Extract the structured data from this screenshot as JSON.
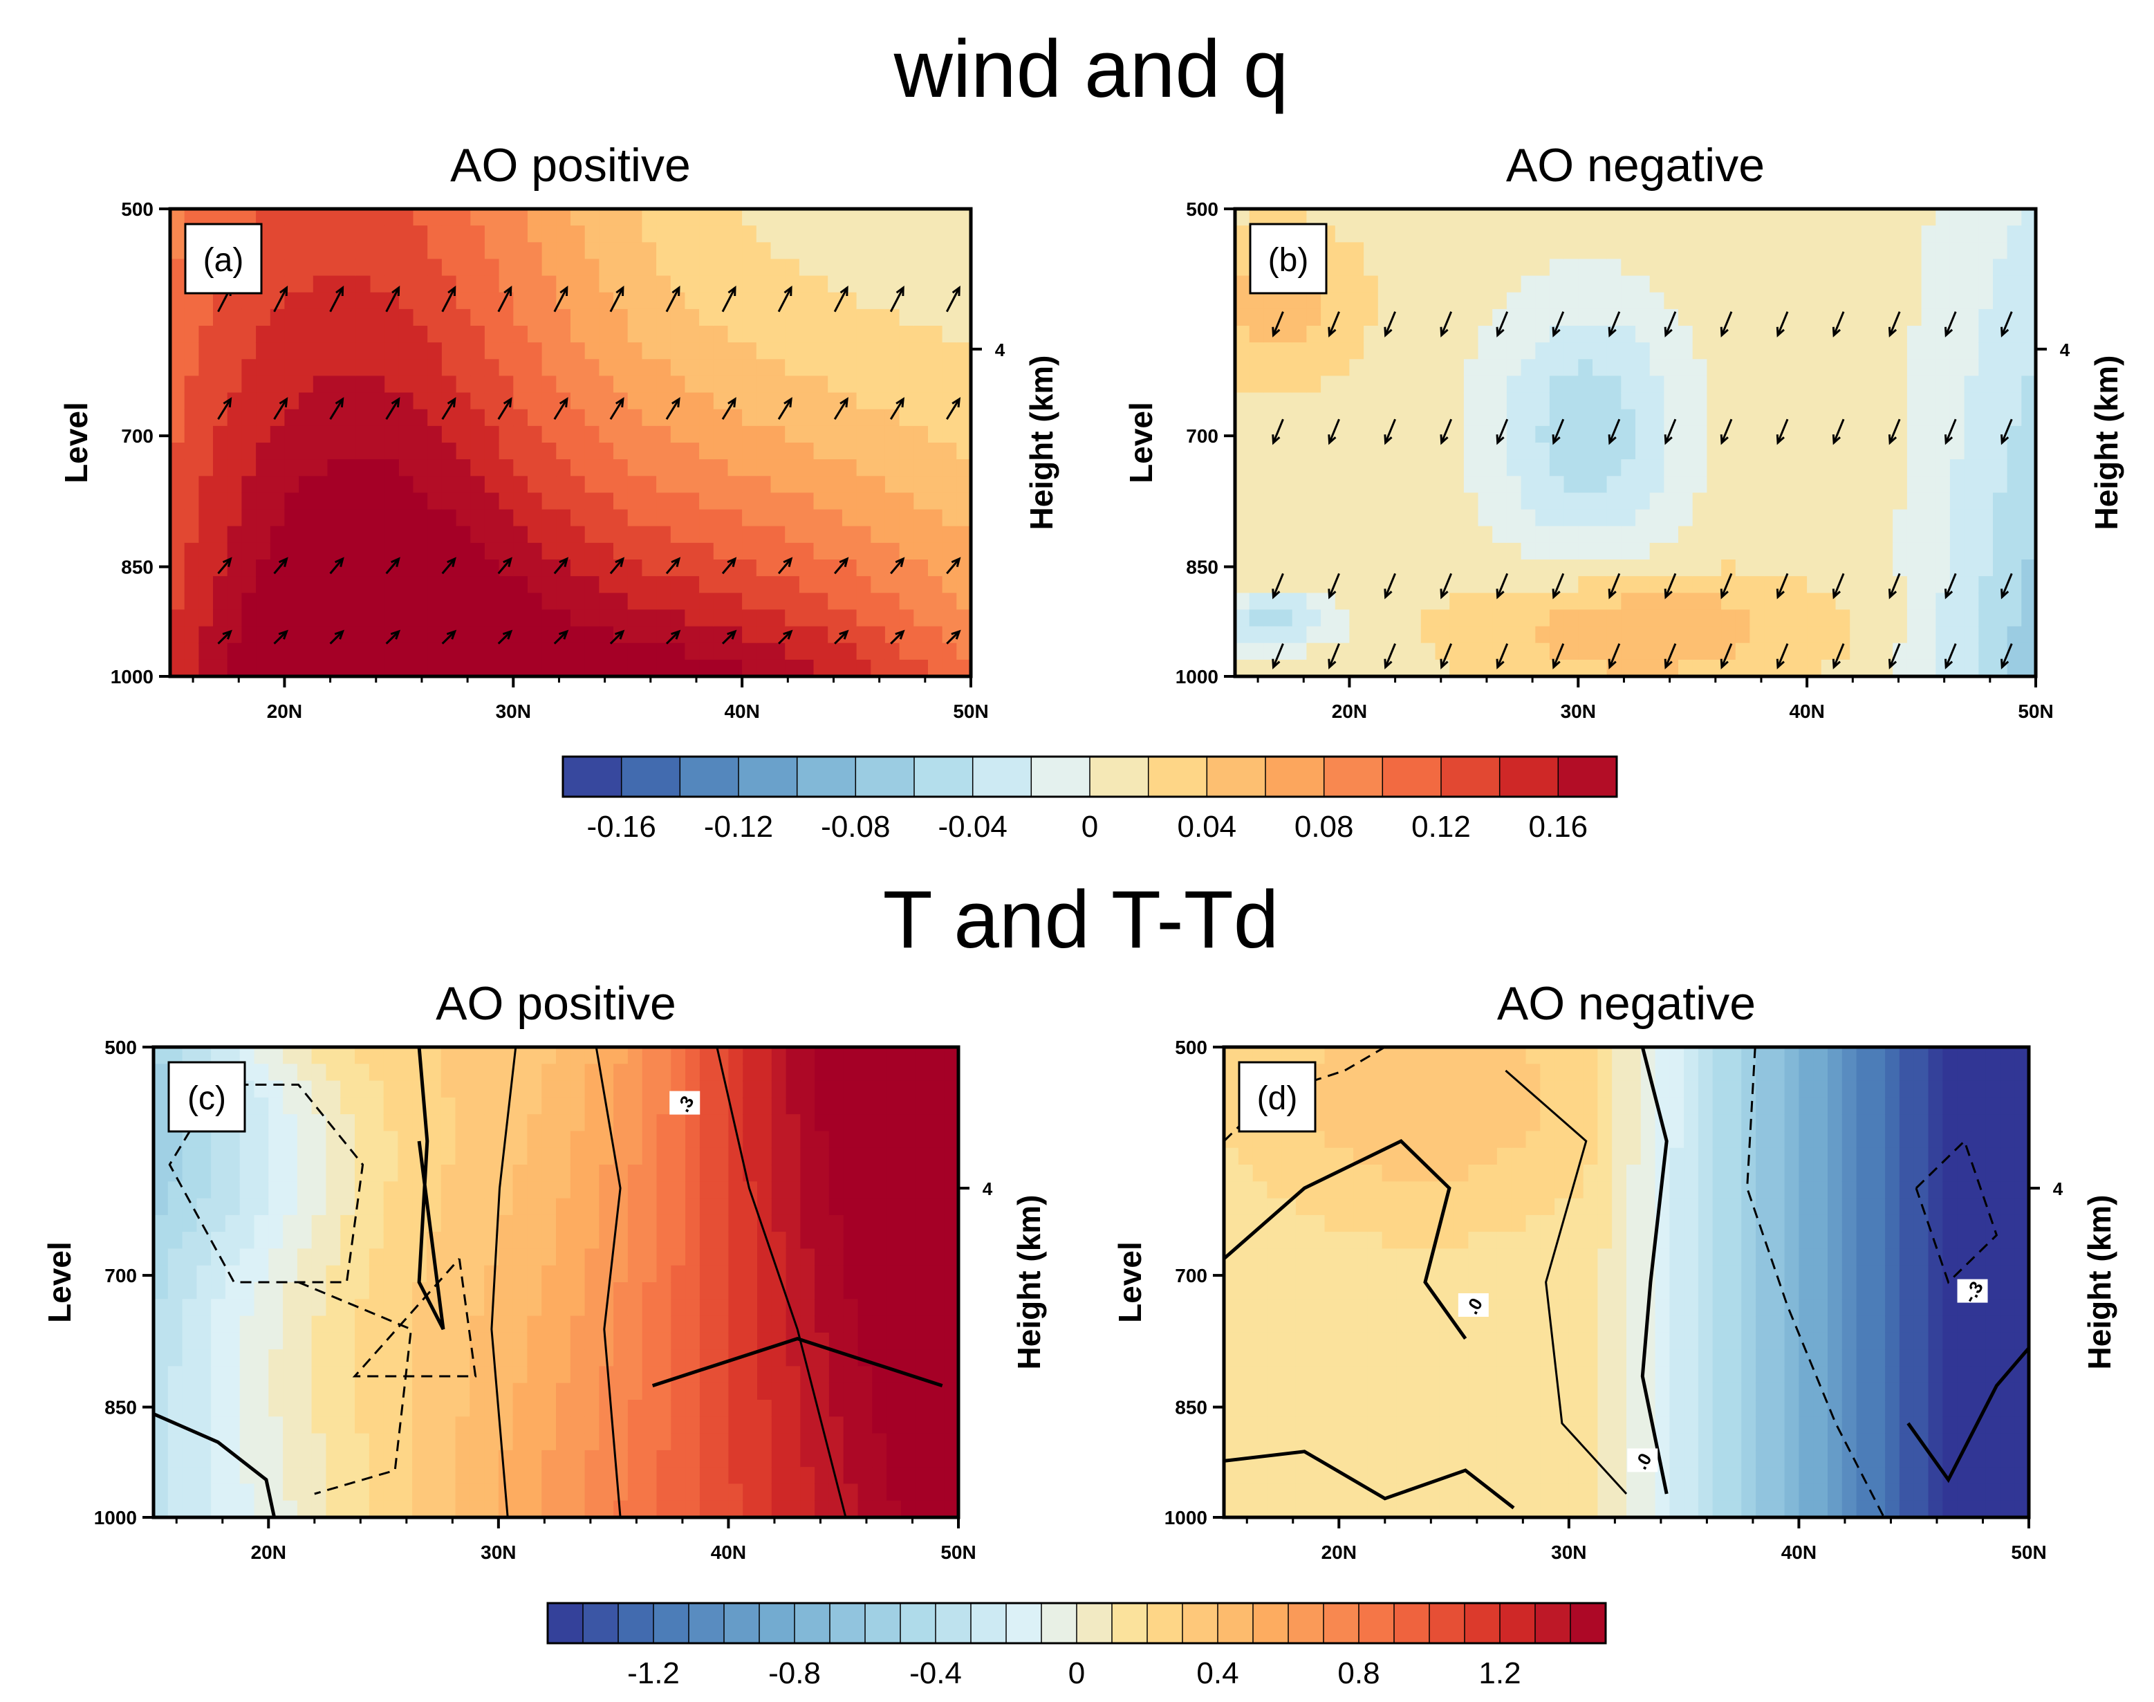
{
  "figure": {
    "top_title": "wind and q",
    "bottom_title": "T and T-Td"
  },
  "chart_data": [
    {
      "type": "heatmap",
      "panel": "(a)",
      "title": "AO positive",
      "variable": "q anomaly (shaded) with wind vectors",
      "xlabel": "",
      "ylabel": "Level",
      "right_label": "Height (km)",
      "right_ticks": [
        "4"
      ],
      "x_ticks": [
        "20N",
        "30N",
        "40N",
        "50N"
      ],
      "y_ticks": [
        "500",
        "700",
        "850",
        "1000"
      ],
      "xlim": [
        15,
        50
      ],
      "ylim": [
        1000,
        500
      ],
      "colorbar": "q",
      "field_center": {
        "lat": 20,
        "level": 800,
        "value": 0.17
      },
      "vectors": "northward/upward",
      "contours": []
    },
    {
      "type": "heatmap",
      "panel": "(b)",
      "title": "AO negative",
      "variable": "q anomaly (shaded) with wind vectors",
      "xlabel": "",
      "ylabel": "Level",
      "right_label": "Height (km)",
      "right_ticks": [
        "4"
      ],
      "x_ticks": [
        "20N",
        "30N",
        "40N",
        "50N"
      ],
      "y_ticks": [
        "500",
        "700",
        "850",
        "1000"
      ],
      "xlim": [
        15,
        50
      ],
      "ylim": [
        1000,
        500
      ],
      "colorbar": "q",
      "field_center": {
        "lat": 30,
        "level": 680,
        "value": -0.06
      },
      "vectors": "southward/downward",
      "contours": []
    },
    {
      "type": "heatmap",
      "panel": "(c)",
      "title": "AO positive",
      "variable": "T anomaly (shaded) with T-Td contours",
      "xlabel": "",
      "ylabel": "Level",
      "right_label": "Height (km)",
      "right_ticks": [
        "4"
      ],
      "x_ticks": [
        "20N",
        "30N",
        "40N",
        "50N"
      ],
      "y_ticks": [
        "500",
        "700",
        "850",
        "1000"
      ],
      "xlim": [
        15,
        50
      ],
      "ylim": [
        1000,
        500
      ],
      "colorbar": "T",
      "field_center": {
        "lat": 45,
        "level": 850,
        "value": 1.4
      },
      "contour_labels": [
        ".3"
      ]
    },
    {
      "type": "heatmap",
      "panel": "(d)",
      "title": "AO negative",
      "variable": "T anomaly (shaded) with T-Td contours",
      "xlabel": "",
      "ylabel": "Level",
      "right_label": "Height (km)",
      "right_ticks": [
        "4"
      ],
      "x_ticks": [
        "20N",
        "30N",
        "40N",
        "50N"
      ],
      "y_ticks": [
        "500",
        "700",
        "850",
        "1000"
      ],
      "xlim": [
        15,
        50
      ],
      "ylim": [
        1000,
        500
      ],
      "colorbar": "T",
      "field_center": {
        "lat": 48,
        "level": 850,
        "value": -1.4
      },
      "contour_labels": [
        ".0",
        ".0",
        "-.3"
      ]
    }
  ],
  "colorbars": {
    "q": {
      "labels": [
        "-0.16",
        "-0.12",
        "-0.08",
        "-0.04",
        "0",
        "0.04",
        "0.08",
        "0.12",
        "0.16"
      ],
      "n_bins": 18,
      "min": -0.18,
      "max": 0.18
    },
    "T": {
      "labels": [
        "-1.2",
        "-0.8",
        "-0.4",
        "0",
        "0.4",
        "0.8",
        "1.2"
      ],
      "n_bins": 30,
      "min": -1.5,
      "max": 1.5
    }
  }
}
